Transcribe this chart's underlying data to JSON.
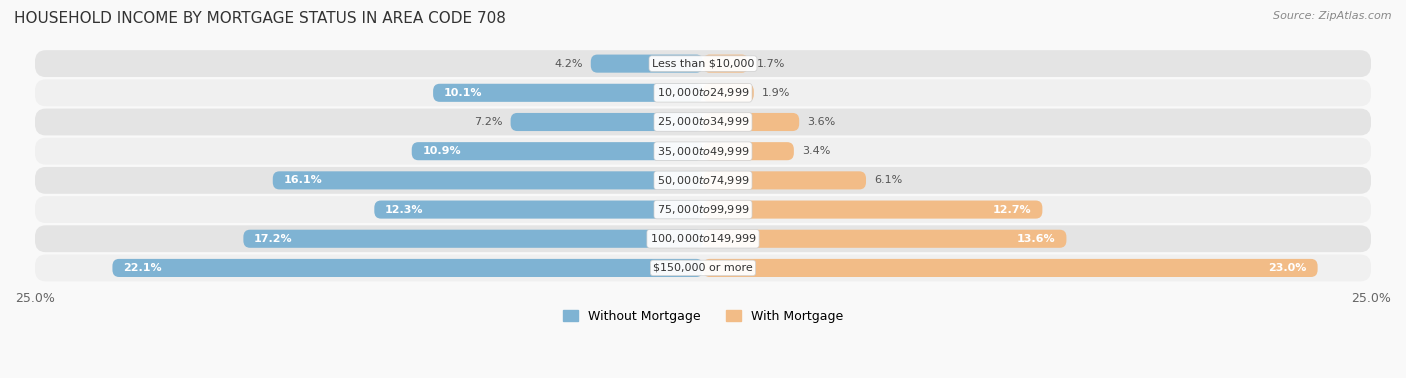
{
  "title": "HOUSEHOLD INCOME BY MORTGAGE STATUS IN AREA CODE 708",
  "source": "Source: ZipAtlas.com",
  "categories": [
    "Less than $10,000",
    "$10,000 to $24,999",
    "$25,000 to $34,999",
    "$35,000 to $49,999",
    "$50,000 to $74,999",
    "$75,000 to $99,999",
    "$100,000 to $149,999",
    "$150,000 or more"
  ],
  "without_mortgage": [
    4.2,
    10.1,
    7.2,
    10.9,
    16.1,
    12.3,
    17.2,
    22.1
  ],
  "with_mortgage": [
    1.7,
    1.9,
    3.6,
    3.4,
    6.1,
    12.7,
    13.6,
    23.0
  ],
  "color_without": "#7fb3d3",
  "color_with": "#f2bc87",
  "bg_colors": [
    "#f0f0f0",
    "#e4e4e4"
  ],
  "axis_max": 25.0,
  "label_without_mortgage": "Without Mortgage",
  "label_with_mortgage": "With Mortgage",
  "title_fontsize": 11,
  "source_fontsize": 8,
  "bar_label_fontsize": 8,
  "category_fontsize": 8,
  "legend_fontsize": 9,
  "axis_tick_fontsize": 9
}
